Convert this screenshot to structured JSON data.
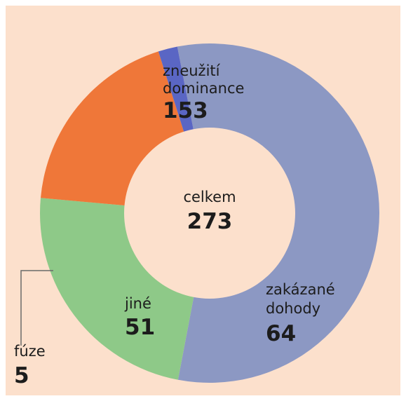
{
  "chart_data": {
    "type": "pie",
    "variant": "donut",
    "total_label": "celkem",
    "total_value": 273,
    "slices": [
      {
        "label": "zneužití dominance",
        "label_lines": [
          "zneužití",
          "dominance"
        ],
        "value": 153,
        "color": "#8c98c3"
      },
      {
        "label": "zakázané dohody",
        "label_lines": [
          "zakázané",
          "dohody"
        ],
        "value": 64,
        "color": "#8ec988"
      },
      {
        "label": "jiné",
        "label_lines": [
          "jiné"
        ],
        "value": 51,
        "color": "#ef7739"
      },
      {
        "label": "fúze",
        "label_lines": [
          "fúze"
        ],
        "value": 5,
        "color": "#5a66c4"
      }
    ]
  },
  "colors": {
    "background": "#fce0cc",
    "hole": "#fce0cc",
    "leader_line": "#6a6a6a"
  }
}
